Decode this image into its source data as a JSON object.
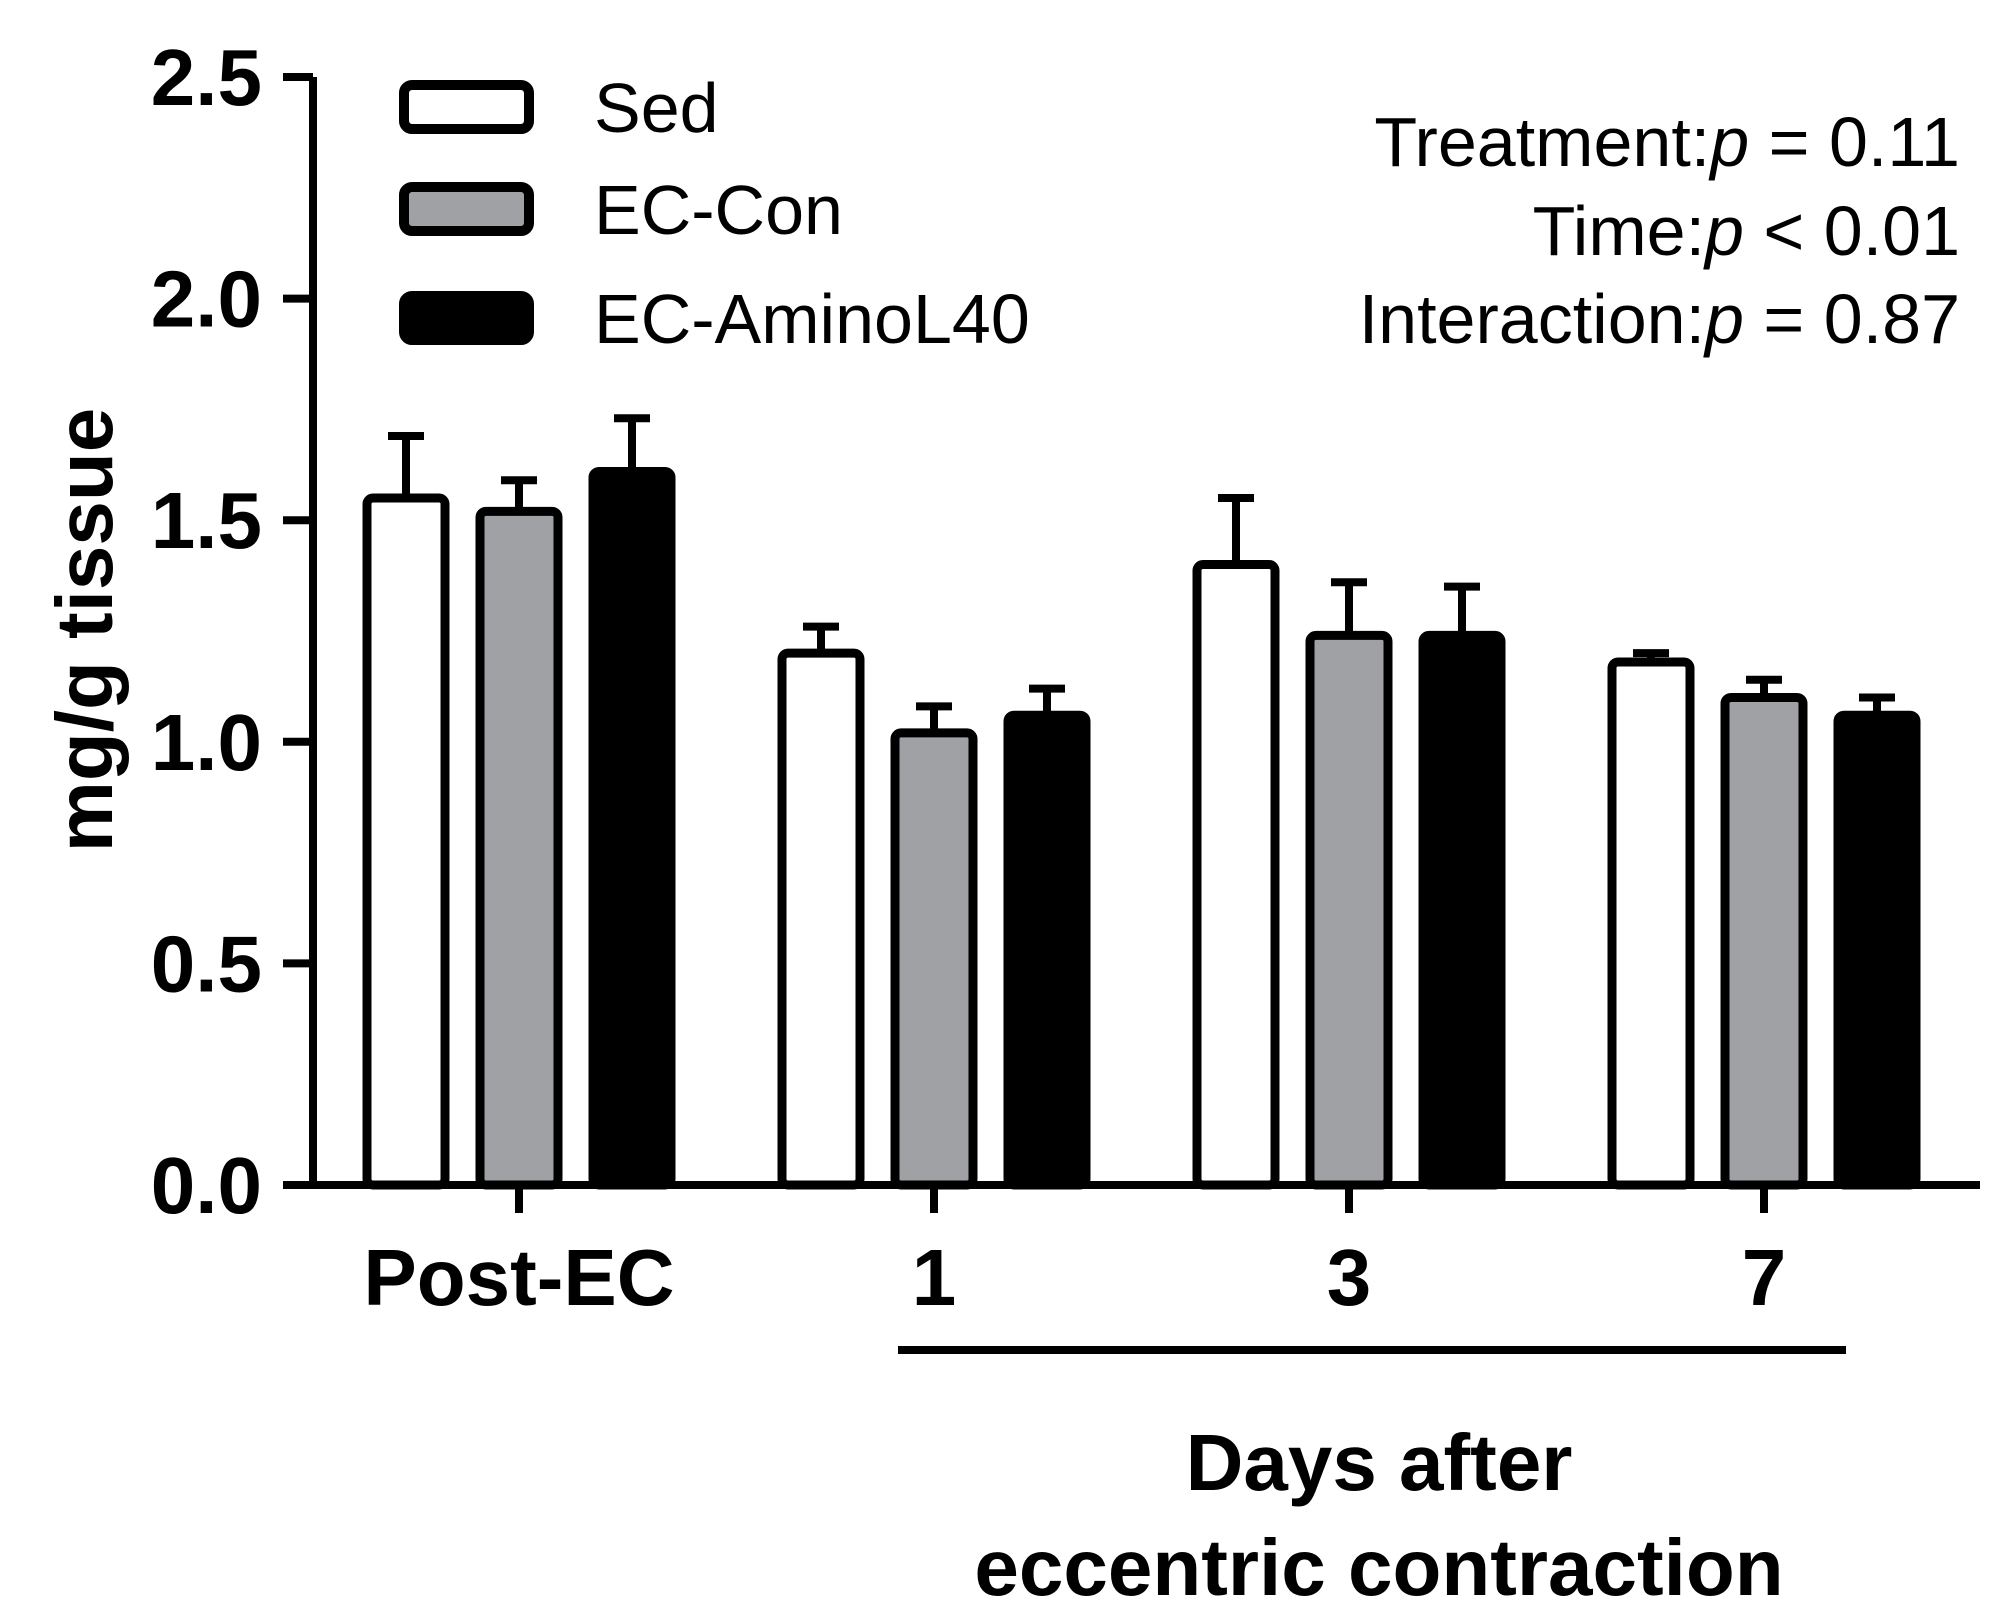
{
  "chart_data": {
    "type": "bar",
    "ylabel": "mg/g tissue",
    "ylim": [
      0,
      2.5
    ],
    "yticks": [
      "0.0",
      "0.5",
      "1.0",
      "1.5",
      "2.0",
      "2.5"
    ],
    "categories": [
      "Post-EC",
      "1",
      "3",
      "7"
    ],
    "group_label": [
      "Days after",
      "eccentric contraction"
    ],
    "series": [
      {
        "name": "Sed",
        "color": "#ffffff",
        "values": [
          1.55,
          1.2,
          1.4,
          1.18
        ],
        "errors": [
          0.14,
          0.06,
          0.15,
          0.02
        ]
      },
      {
        "name": "EC-Con",
        "color": "#a0a1a5",
        "values": [
          1.52,
          1.02,
          1.24,
          1.1
        ],
        "errors": [
          0.07,
          0.06,
          0.12,
          0.04
        ]
      },
      {
        "name": "EC-AminoL40",
        "color": "#000000",
        "values": [
          1.61,
          1.06,
          1.24,
          1.06
        ],
        "errors": [
          0.12,
          0.06,
          0.11,
          0.04
        ]
      }
    ],
    "stats": [
      {
        "label": "Treatment:",
        "p": "p",
        "rest": " = 0.11"
      },
      {
        "label": "Time:",
        "p": "p",
        "rest": " < 0.01"
      },
      {
        "label": "Interaction:",
        "p": "p",
        "rest": " = 0.87"
      }
    ]
  }
}
